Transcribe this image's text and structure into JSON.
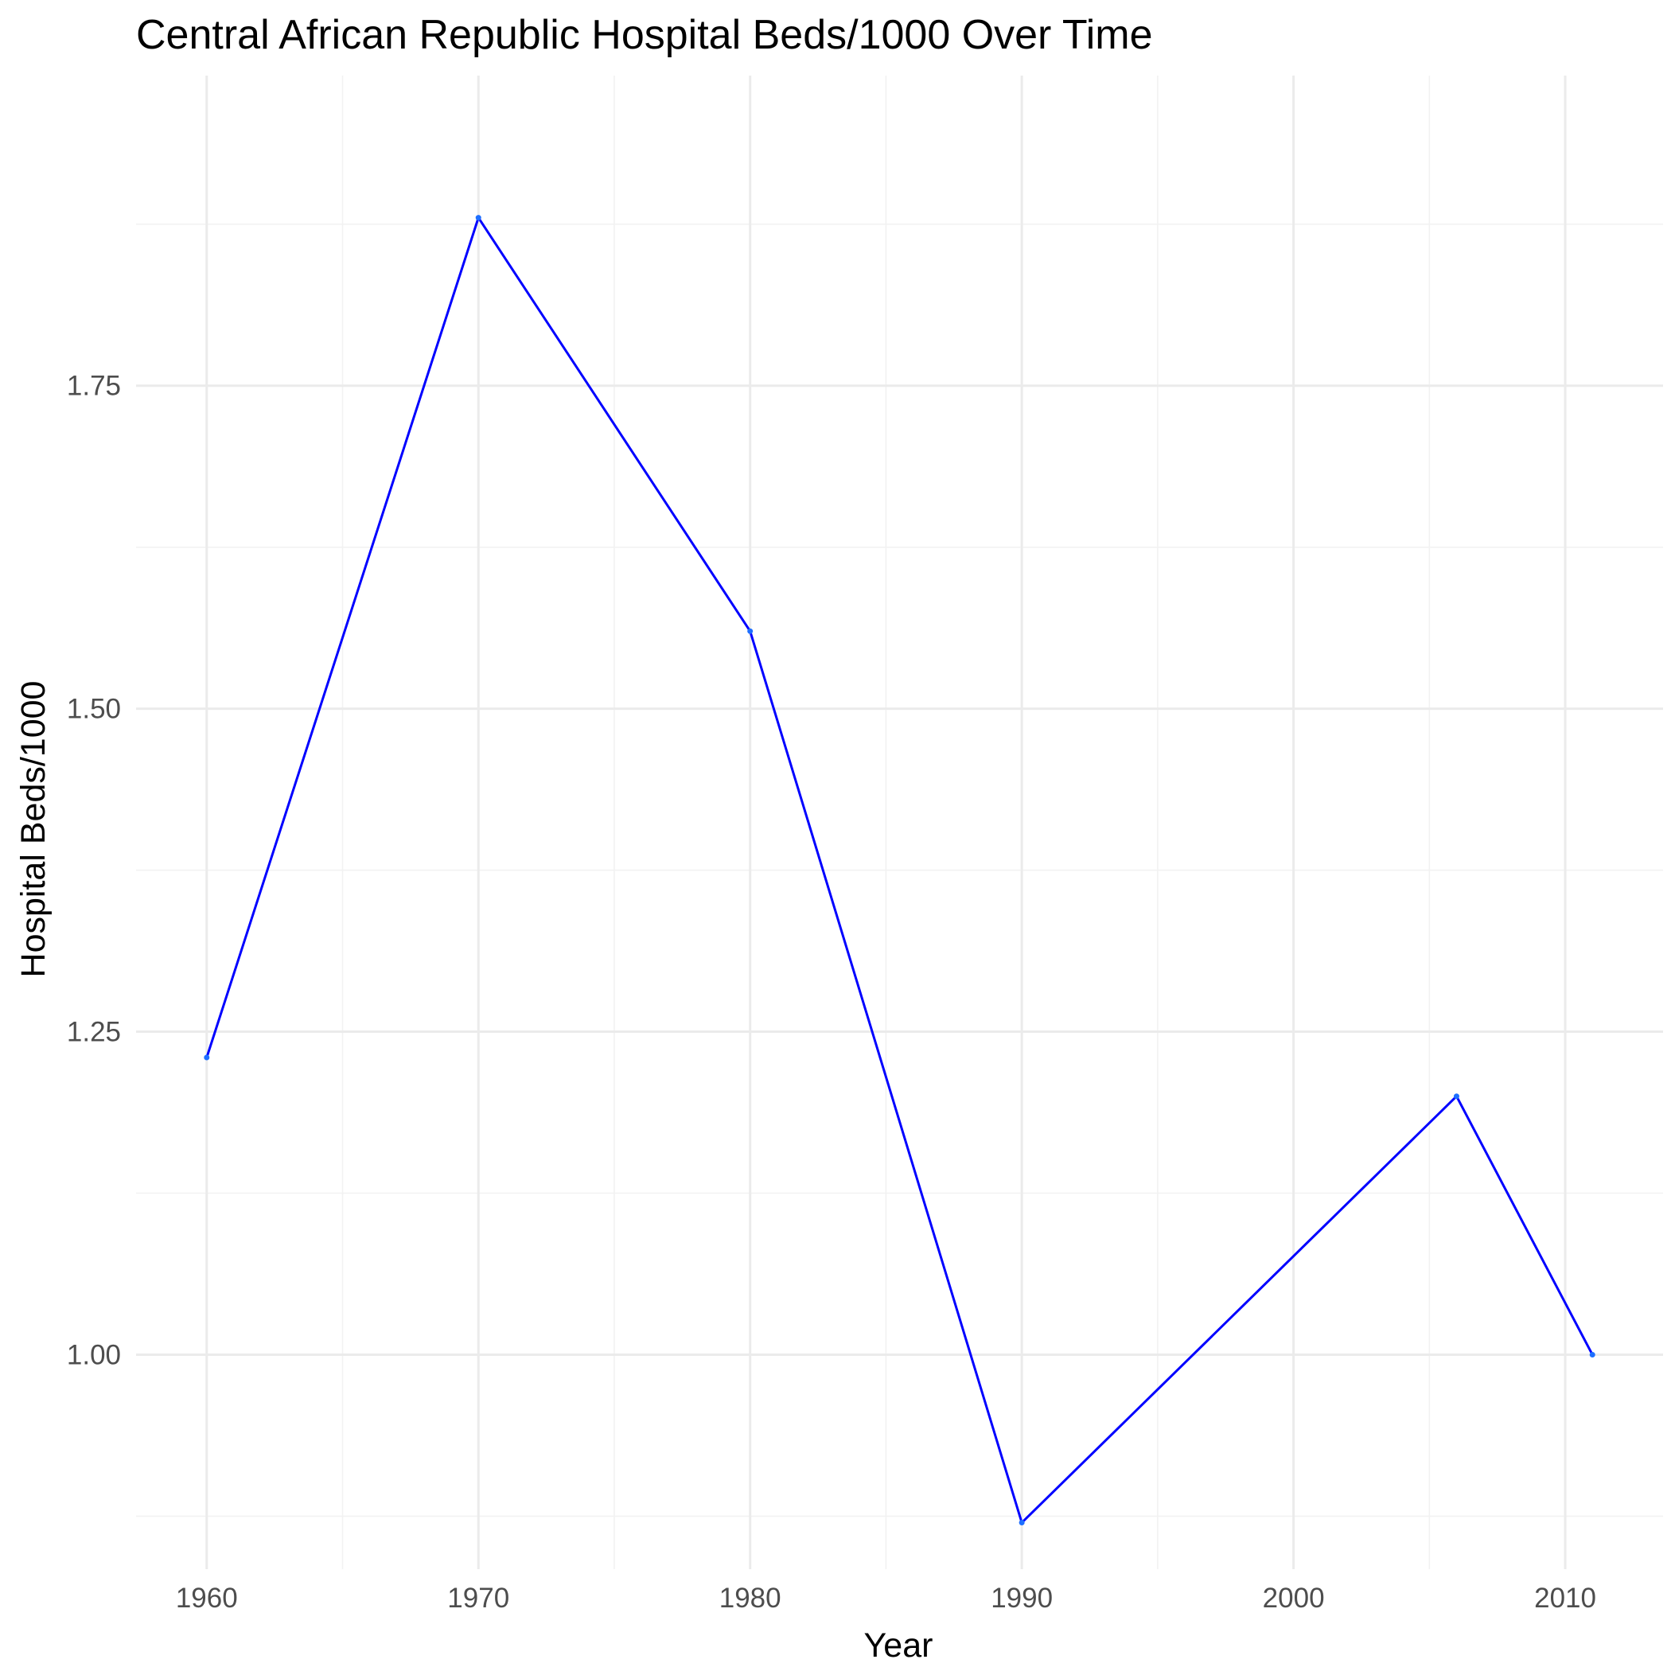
{
  "chart_data": {
    "type": "line",
    "title": "Central African Republic Hospital Beds/1000 Over Time",
    "xlabel": "Year",
    "ylabel": "Hospital Beds/1000",
    "xlim": [
      1957.4,
      2013.6
    ],
    "ylim": [
      0.834,
      1.99
    ],
    "x_ticks": [
      1960,
      1970,
      1980,
      1990,
      2000,
      2010
    ],
    "y_ticks": [
      1.0,
      1.25,
      1.5,
      1.75
    ],
    "y_tick_labels": [
      "1.00",
      "1.25",
      "1.50",
      "1.75"
    ],
    "grid": true,
    "colors": {
      "line": "#0000ff",
      "point": "#1e6fff",
      "grid_major": "#ebebeb",
      "grid_minor": "#f2f2f2"
    },
    "series": [
      {
        "name": "Hospital Beds/1000",
        "x": [
          1960,
          1970,
          1980,
          1990,
          2006,
          2011
        ],
        "values": [
          1.23,
          1.88,
          1.56,
          0.87,
          1.2,
          1.0
        ]
      }
    ]
  }
}
